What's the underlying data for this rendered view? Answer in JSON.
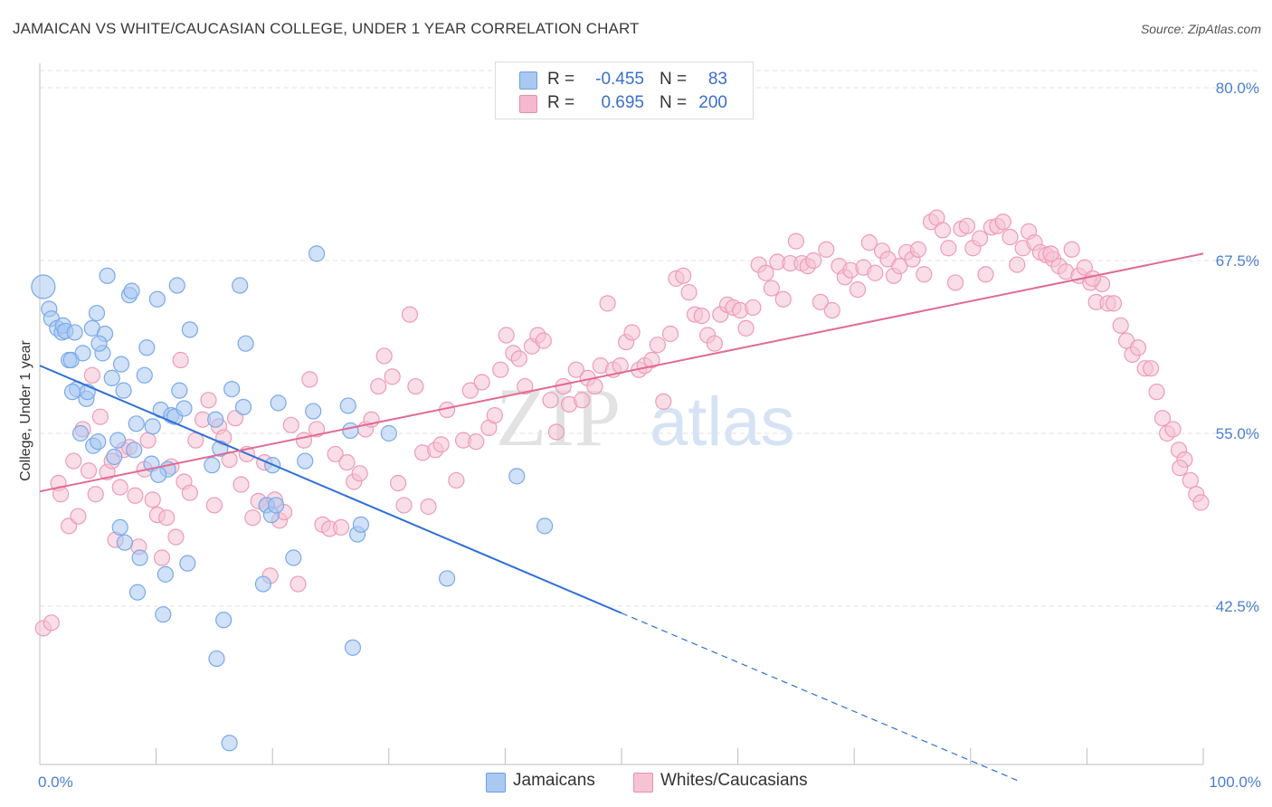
{
  "title": "JAMAICAN VS WHITE/CAUCASIAN COLLEGE, UNDER 1 YEAR CORRELATION CHART",
  "source": "Source: ZipAtlas.com",
  "watermark": {
    "zip": "ZIP",
    "atlas": "atlas"
  },
  "legend": {
    "rows": [
      {
        "r_label": "R =",
        "r_value": "-0.455",
        "n_label": "N =",
        "n_value": "83",
        "color": "#a9c8f2",
        "border": "#6f9fe0"
      },
      {
        "r_label": "R =",
        "r_value": "0.695",
        "n_label": "N =",
        "n_value": "200",
        "color": "#f6b8cc",
        "border": "#e88fae"
      }
    ]
  },
  "bottom_legend": [
    {
      "label": "Jamaicans",
      "color": "#a9c8f2",
      "border": "#6f9fe0"
    },
    {
      "label": "Whites/Caucasians",
      "color": "#f6c3d3",
      "border": "#e88fae"
    }
  ],
  "chart_data": {
    "type": "scatter",
    "ylabel": "College, Under 1 year",
    "xlim": [
      0,
      100
    ],
    "ylim": [
      30,
      82
    ],
    "x_tick_labels": [
      {
        "value": 0,
        "label": "0.0%"
      },
      {
        "value": 100,
        "label": "100.0%"
      }
    ],
    "y_tick_labels": [
      {
        "value": 80.0,
        "label": "80.0%"
      },
      {
        "value": 67.5,
        "label": "67.5%"
      },
      {
        "value": 55.0,
        "label": "55.0%"
      },
      {
        "value": 42.5,
        "label": "42.5%"
      }
    ],
    "grid": true,
    "series": [
      {
        "name": "Jamaicans",
        "color": "#7aa9ea",
        "fill": "#a9c8f2",
        "trend": {
          "x0": 0,
          "y0": 59.9,
          "x1": 50,
          "y1": 42.0,
          "dash_to_x": 84,
          "dash_to_y": 29.9,
          "color": "#2f6fd6"
        },
        "points": [
          [
            0.3,
            65.6
          ],
          [
            0.8,
            64.0
          ],
          [
            1.0,
            63.3
          ],
          [
            1.5,
            62.6
          ],
          [
            1.9,
            62.3
          ],
          [
            2.0,
            62.8
          ],
          [
            2.2,
            62.4
          ],
          [
            2.5,
            60.3
          ],
          [
            2.7,
            60.3
          ],
          [
            3.0,
            62.3
          ],
          [
            3.2,
            58.2
          ],
          [
            3.5,
            55.0
          ],
          [
            3.7,
            60.8
          ],
          [
            4.0,
            57.5
          ],
          [
            4.1,
            58.0
          ],
          [
            4.5,
            62.6
          ],
          [
            4.6,
            54.1
          ],
          [
            4.9,
            63.7
          ],
          [
            5.0,
            54.4
          ],
          [
            5.4,
            60.8
          ],
          [
            5.6,
            62.2
          ],
          [
            5.8,
            66.4
          ],
          [
            6.2,
            59.0
          ],
          [
            6.4,
            53.3
          ],
          [
            6.7,
            54.5
          ],
          [
            6.9,
            48.2
          ],
          [
            7.2,
            58.1
          ],
          [
            7.3,
            47.1
          ],
          [
            7.7,
            65.0
          ],
          [
            7.9,
            65.3
          ],
          [
            8.1,
            53.8
          ],
          [
            8.3,
            55.7
          ],
          [
            8.4,
            43.5
          ],
          [
            8.6,
            46.0
          ],
          [
            9.0,
            59.2
          ],
          [
            9.2,
            61.2
          ],
          [
            9.6,
            52.8
          ],
          [
            9.7,
            55.5
          ],
          [
            10.1,
            64.7
          ],
          [
            10.4,
            56.7
          ],
          [
            10.6,
            41.9
          ],
          [
            10.8,
            44.8
          ],
          [
            11.0,
            52.4
          ],
          [
            11.3,
            56.3
          ],
          [
            11.6,
            56.2
          ],
          [
            11.8,
            65.7
          ],
          [
            12.0,
            58.1
          ],
          [
            12.4,
            56.8
          ],
          [
            12.7,
            45.6
          ],
          [
            12.9,
            62.5
          ],
          [
            14.8,
            52.7
          ],
          [
            15.1,
            56.0
          ],
          [
            15.2,
            38.7
          ],
          [
            15.5,
            53.9
          ],
          [
            15.8,
            41.5
          ],
          [
            16.3,
            32.6
          ],
          [
            16.5,
            58.2
          ],
          [
            17.2,
            65.7
          ],
          [
            17.5,
            56.9
          ],
          [
            17.7,
            61.5
          ],
          [
            19.2,
            44.1
          ],
          [
            19.5,
            49.8
          ],
          [
            19.9,
            49.1
          ],
          [
            20.0,
            52.7
          ],
          [
            20.3,
            49.8
          ],
          [
            20.5,
            57.2
          ],
          [
            21.8,
            46.0
          ],
          [
            22.8,
            53.0
          ],
          [
            23.5,
            56.6
          ],
          [
            23.8,
            68.0
          ],
          [
            26.5,
            57.0
          ],
          [
            26.7,
            55.2
          ],
          [
            27.3,
            47.7
          ],
          [
            27.6,
            48.4
          ],
          [
            26.9,
            39.5
          ],
          [
            30.0,
            55.0
          ],
          [
            35.0,
            44.5
          ],
          [
            41.0,
            51.9
          ],
          [
            43.4,
            48.3
          ],
          [
            10.2,
            52.0
          ],
          [
            2.8,
            58.0
          ],
          [
            5.1,
            61.5
          ],
          [
            7.0,
            60.0
          ]
        ]
      },
      {
        "name": "Whites/Caucasians",
        "color": "#ee9bb7",
        "fill": "#f6c3d3",
        "trend": {
          "x0": 0,
          "y0": 50.8,
          "x1": 100,
          "y1": 68.0,
          "color": "#e06b94"
        },
        "points": [
          [
            0.3,
            40.9
          ],
          [
            1.0,
            41.3
          ],
          [
            1.6,
            51.4
          ],
          [
            1.8,
            50.6
          ],
          [
            2.5,
            48.3
          ],
          [
            2.9,
            53.0
          ],
          [
            3.3,
            49.0
          ],
          [
            3.7,
            55.3
          ],
          [
            4.2,
            52.3
          ],
          [
            4.5,
            59.2
          ],
          [
            4.8,
            50.6
          ],
          [
            5.2,
            56.2
          ],
          [
            5.8,
            52.2
          ],
          [
            6.2,
            53.0
          ],
          [
            6.5,
            47.3
          ],
          [
            6.9,
            51.1
          ],
          [
            7.2,
            53.8
          ],
          [
            7.7,
            54.0
          ],
          [
            8.2,
            50.5
          ],
          [
            8.5,
            46.8
          ],
          [
            9.0,
            52.4
          ],
          [
            9.3,
            54.5
          ],
          [
            9.7,
            50.2
          ],
          [
            10.1,
            49.1
          ],
          [
            10.5,
            46.0
          ],
          [
            10.9,
            48.9
          ],
          [
            11.3,
            52.6
          ],
          [
            11.7,
            47.5
          ],
          [
            12.1,
            60.3
          ],
          [
            12.4,
            51.5
          ],
          [
            12.9,
            50.7
          ],
          [
            13.4,
            54.5
          ],
          [
            14.0,
            56.0
          ],
          [
            14.5,
            57.4
          ],
          [
            15.0,
            49.8
          ],
          [
            15.4,
            55.5
          ],
          [
            15.8,
            54.7
          ],
          [
            16.3,
            53.1
          ],
          [
            16.8,
            56.1
          ],
          [
            17.3,
            51.3
          ],
          [
            17.8,
            53.5
          ],
          [
            18.3,
            48.9
          ],
          [
            18.8,
            50.1
          ],
          [
            19.3,
            52.9
          ],
          [
            19.5,
            49.8
          ],
          [
            19.8,
            44.7
          ],
          [
            20.2,
            50.2
          ],
          [
            20.6,
            48.7
          ],
          [
            21.0,
            49.3
          ],
          [
            21.6,
            55.6
          ],
          [
            22.2,
            44.1
          ],
          [
            22.7,
            54.5
          ],
          [
            23.2,
            58.9
          ],
          [
            23.8,
            55.3
          ],
          [
            24.3,
            48.4
          ],
          [
            24.9,
            48.1
          ],
          [
            25.4,
            53.5
          ],
          [
            25.9,
            48.2
          ],
          [
            26.4,
            52.9
          ],
          [
            27.0,
            51.5
          ],
          [
            27.5,
            52.1
          ],
          [
            28.0,
            55.3
          ],
          [
            28.5,
            56.0
          ],
          [
            29.1,
            58.4
          ],
          [
            29.6,
            60.6
          ],
          [
            30.3,
            59.1
          ],
          [
            30.8,
            51.4
          ],
          [
            31.3,
            49.8
          ],
          [
            31.8,
            63.6
          ],
          [
            32.3,
            58.4
          ],
          [
            32.9,
            53.6
          ],
          [
            33.4,
            49.7
          ],
          [
            34.0,
            53.8
          ],
          [
            34.5,
            54.2
          ],
          [
            35.0,
            56.7
          ],
          [
            35.8,
            51.6
          ],
          [
            36.4,
            54.5
          ],
          [
            37.0,
            58.1
          ],
          [
            37.5,
            54.4
          ],
          [
            38.0,
            58.7
          ],
          [
            38.6,
            55.4
          ],
          [
            39.1,
            56.3
          ],
          [
            39.6,
            59.6
          ],
          [
            40.1,
            62.1
          ],
          [
            40.7,
            60.8
          ],
          [
            41.2,
            60.4
          ],
          [
            41.7,
            58.4
          ],
          [
            42.3,
            61.3
          ],
          [
            42.8,
            62.1
          ],
          [
            43.3,
            61.7
          ],
          [
            43.9,
            57.4
          ],
          [
            44.4,
            55.1
          ],
          [
            45.0,
            58.4
          ],
          [
            45.5,
            57.1
          ],
          [
            46.1,
            59.6
          ],
          [
            46.6,
            57.4
          ],
          [
            47.1,
            59.0
          ],
          [
            47.7,
            58.4
          ],
          [
            48.2,
            59.9
          ],
          [
            48.8,
            64.4
          ],
          [
            49.3,
            59.6
          ],
          [
            49.9,
            59.9
          ],
          [
            50.4,
            61.6
          ],
          [
            50.9,
            62.3
          ],
          [
            51.5,
            59.6
          ],
          [
            52.0,
            59.9
          ],
          [
            52.6,
            60.3
          ],
          [
            53.1,
            61.4
          ],
          [
            53.6,
            57.3
          ],
          [
            54.2,
            62.2
          ],
          [
            54.7,
            66.2
          ],
          [
            55.3,
            66.4
          ],
          [
            55.8,
            65.2
          ],
          [
            56.3,
            63.6
          ],
          [
            56.9,
            63.5
          ],
          [
            57.4,
            62.1
          ],
          [
            58.0,
            61.5
          ],
          [
            58.5,
            63.6
          ],
          [
            59.1,
            64.3
          ],
          [
            59.6,
            64.1
          ],
          [
            60.2,
            63.9
          ],
          [
            60.7,
            62.6
          ],
          [
            61.3,
            64.1
          ],
          [
            61.8,
            67.2
          ],
          [
            62.4,
            66.6
          ],
          [
            62.9,
            65.5
          ],
          [
            63.4,
            67.4
          ],
          [
            63.9,
            64.7
          ],
          [
            64.5,
            67.3
          ],
          [
            65.0,
            68.9
          ],
          [
            65.5,
            67.3
          ],
          [
            66.0,
            67.1
          ],
          [
            66.5,
            67.5
          ],
          [
            67.1,
            64.5
          ],
          [
            67.6,
            68.3
          ],
          [
            68.1,
            63.9
          ],
          [
            68.7,
            67.1
          ],
          [
            69.2,
            66.3
          ],
          [
            69.7,
            66.8
          ],
          [
            70.3,
            65.4
          ],
          [
            70.8,
            67.0
          ],
          [
            71.3,
            68.8
          ],
          [
            71.8,
            66.6
          ],
          [
            72.4,
            68.2
          ],
          [
            72.9,
            67.6
          ],
          [
            73.4,
            66.4
          ],
          [
            73.9,
            67.1
          ],
          [
            74.5,
            68.1
          ],
          [
            75.0,
            67.6
          ],
          [
            75.5,
            68.3
          ],
          [
            76.0,
            66.5
          ],
          [
            76.6,
            70.3
          ],
          [
            77.1,
            70.6
          ],
          [
            77.6,
            69.7
          ],
          [
            78.1,
            68.4
          ],
          [
            78.7,
            65.9
          ],
          [
            79.2,
            69.8
          ],
          [
            79.7,
            70.0
          ],
          [
            80.2,
            68.4
          ],
          [
            80.8,
            69.1
          ],
          [
            81.3,
            66.5
          ],
          [
            81.8,
            69.9
          ],
          [
            82.3,
            70.0
          ],
          [
            82.8,
            70.3
          ],
          [
            83.4,
            69.2
          ],
          [
            84.0,
            67.2
          ],
          [
            84.5,
            68.4
          ],
          [
            85.0,
            69.6
          ],
          [
            85.5,
            68.8
          ],
          [
            86.0,
            68.1
          ],
          [
            86.5,
            67.9
          ],
          [
            87.1,
            67.6
          ],
          [
            87.6,
            67.1
          ],
          [
            88.2,
            66.7
          ],
          [
            88.7,
            68.3
          ],
          [
            89.3,
            66.4
          ],
          [
            89.8,
            67.0
          ],
          [
            90.3,
            65.9
          ],
          [
            90.8,
            64.5
          ],
          [
            91.3,
            65.8
          ],
          [
            91.8,
            64.4
          ],
          [
            92.3,
            64.4
          ],
          [
            92.9,
            62.8
          ],
          [
            93.4,
            61.7
          ],
          [
            93.9,
            60.7
          ],
          [
            94.4,
            61.2
          ],
          [
            95.0,
            59.7
          ],
          [
            95.5,
            59.7
          ],
          [
            96.0,
            58.0
          ],
          [
            96.5,
            56.1
          ],
          [
            96.9,
            55.0
          ],
          [
            97.4,
            55.3
          ],
          [
            97.9,
            53.8
          ],
          [
            98.4,
            53.1
          ],
          [
            98.9,
            51.6
          ],
          [
            99.4,
            50.6
          ],
          [
            99.8,
            50.0
          ],
          [
            98.0,
            52.5
          ],
          [
            90.5,
            66.2
          ],
          [
            86.9,
            68.0
          ]
        ]
      }
    ]
  }
}
